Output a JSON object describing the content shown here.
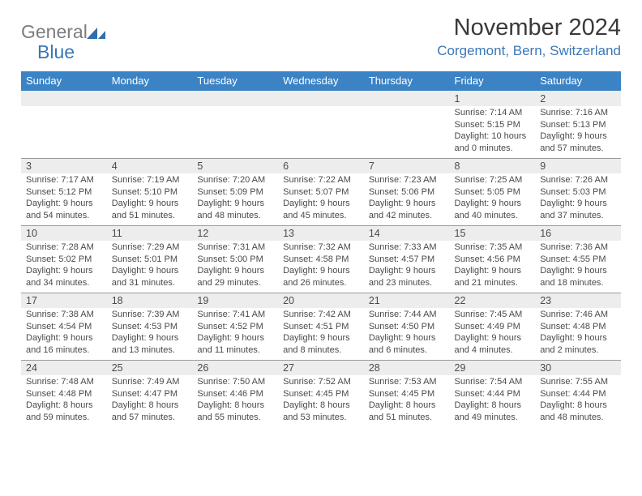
{
  "logo": {
    "general": "General",
    "blue": "Blue"
  },
  "title": "November 2024",
  "location": "Corgemont, Bern, Switzerland",
  "colors": {
    "header_bg": "#3b83c4",
    "header_fg": "#ffffff",
    "daynum_bg": "#ededed",
    "row_border": "#9a9a9a",
    "title_color": "#3a3a3a",
    "link_color": "#3b78b6",
    "logo_gray": "#7a7c7f"
  },
  "day_headers": [
    "Sunday",
    "Monday",
    "Tuesday",
    "Wednesday",
    "Thursday",
    "Friday",
    "Saturday"
  ],
  "weeks": [
    {
      "nums": [
        "",
        "",
        "",
        "",
        "",
        "1",
        "2"
      ],
      "cells": [
        {},
        {},
        {},
        {},
        {},
        {
          "sunrise": "7:14 AM",
          "sunset": "5:15 PM",
          "dl1": "10 hours",
          "dl2": "and 0 minutes."
        },
        {
          "sunrise": "7:16 AM",
          "sunset": "5:13 PM",
          "dl1": "9 hours",
          "dl2": "and 57 minutes."
        }
      ]
    },
    {
      "nums": [
        "3",
        "4",
        "5",
        "6",
        "7",
        "8",
        "9"
      ],
      "cells": [
        {
          "sunrise": "7:17 AM",
          "sunset": "5:12 PM",
          "dl1": "9 hours",
          "dl2": "and 54 minutes."
        },
        {
          "sunrise": "7:19 AM",
          "sunset": "5:10 PM",
          "dl1": "9 hours",
          "dl2": "and 51 minutes."
        },
        {
          "sunrise": "7:20 AM",
          "sunset": "5:09 PM",
          "dl1": "9 hours",
          "dl2": "and 48 minutes."
        },
        {
          "sunrise": "7:22 AM",
          "sunset": "5:07 PM",
          "dl1": "9 hours",
          "dl2": "and 45 minutes."
        },
        {
          "sunrise": "7:23 AM",
          "sunset": "5:06 PM",
          "dl1": "9 hours",
          "dl2": "and 42 minutes."
        },
        {
          "sunrise": "7:25 AM",
          "sunset": "5:05 PM",
          "dl1": "9 hours",
          "dl2": "and 40 minutes."
        },
        {
          "sunrise": "7:26 AM",
          "sunset": "5:03 PM",
          "dl1": "9 hours",
          "dl2": "and 37 minutes."
        }
      ]
    },
    {
      "nums": [
        "10",
        "11",
        "12",
        "13",
        "14",
        "15",
        "16"
      ],
      "cells": [
        {
          "sunrise": "7:28 AM",
          "sunset": "5:02 PM",
          "dl1": "9 hours",
          "dl2": "and 34 minutes."
        },
        {
          "sunrise": "7:29 AM",
          "sunset": "5:01 PM",
          "dl1": "9 hours",
          "dl2": "and 31 minutes."
        },
        {
          "sunrise": "7:31 AM",
          "sunset": "5:00 PM",
          "dl1": "9 hours",
          "dl2": "and 29 minutes."
        },
        {
          "sunrise": "7:32 AM",
          "sunset": "4:58 PM",
          "dl1": "9 hours",
          "dl2": "and 26 minutes."
        },
        {
          "sunrise": "7:33 AM",
          "sunset": "4:57 PM",
          "dl1": "9 hours",
          "dl2": "and 23 minutes."
        },
        {
          "sunrise": "7:35 AM",
          "sunset": "4:56 PM",
          "dl1": "9 hours",
          "dl2": "and 21 minutes."
        },
        {
          "sunrise": "7:36 AM",
          "sunset": "4:55 PM",
          "dl1": "9 hours",
          "dl2": "and 18 minutes."
        }
      ]
    },
    {
      "nums": [
        "17",
        "18",
        "19",
        "20",
        "21",
        "22",
        "23"
      ],
      "cells": [
        {
          "sunrise": "7:38 AM",
          "sunset": "4:54 PM",
          "dl1": "9 hours",
          "dl2": "and 16 minutes."
        },
        {
          "sunrise": "7:39 AM",
          "sunset": "4:53 PM",
          "dl1": "9 hours",
          "dl2": "and 13 minutes."
        },
        {
          "sunrise": "7:41 AM",
          "sunset": "4:52 PM",
          "dl1": "9 hours",
          "dl2": "and 11 minutes."
        },
        {
          "sunrise": "7:42 AM",
          "sunset": "4:51 PM",
          "dl1": "9 hours",
          "dl2": "and 8 minutes."
        },
        {
          "sunrise": "7:44 AM",
          "sunset": "4:50 PM",
          "dl1": "9 hours",
          "dl2": "and 6 minutes."
        },
        {
          "sunrise": "7:45 AM",
          "sunset": "4:49 PM",
          "dl1": "9 hours",
          "dl2": "and 4 minutes."
        },
        {
          "sunrise": "7:46 AM",
          "sunset": "4:48 PM",
          "dl1": "9 hours",
          "dl2": "and 2 minutes."
        }
      ]
    },
    {
      "nums": [
        "24",
        "25",
        "26",
        "27",
        "28",
        "29",
        "30"
      ],
      "cells": [
        {
          "sunrise": "7:48 AM",
          "sunset": "4:48 PM",
          "dl1": "8 hours",
          "dl2": "and 59 minutes."
        },
        {
          "sunrise": "7:49 AM",
          "sunset": "4:47 PM",
          "dl1": "8 hours",
          "dl2": "and 57 minutes."
        },
        {
          "sunrise": "7:50 AM",
          "sunset": "4:46 PM",
          "dl1": "8 hours",
          "dl2": "and 55 minutes."
        },
        {
          "sunrise": "7:52 AM",
          "sunset": "4:45 PM",
          "dl1": "8 hours",
          "dl2": "and 53 minutes."
        },
        {
          "sunrise": "7:53 AM",
          "sunset": "4:45 PM",
          "dl1": "8 hours",
          "dl2": "and 51 minutes."
        },
        {
          "sunrise": "7:54 AM",
          "sunset": "4:44 PM",
          "dl1": "8 hours",
          "dl2": "and 49 minutes."
        },
        {
          "sunrise": "7:55 AM",
          "sunset": "4:44 PM",
          "dl1": "8 hours",
          "dl2": "and 48 minutes."
        }
      ]
    }
  ]
}
